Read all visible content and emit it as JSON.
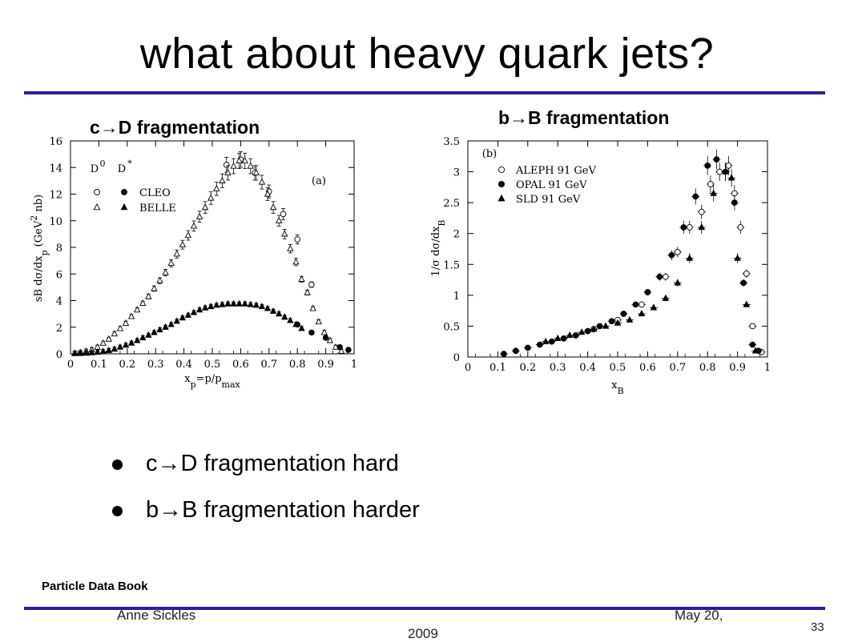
{
  "slide": {
    "title": "what about heavy quark jets?",
    "left_subtitle": "c→D fragmentation",
    "right_subtitle": "b→B fragmentation",
    "bullets": [
      "c→D fragmentation hard",
      "b→B fragmentation harder"
    ],
    "source": "Particle Data Book",
    "footer": {
      "author": "Anne Sickles",
      "date_line1": "May 20,",
      "date_line2": "2009",
      "page": "33"
    }
  },
  "chart_data": [
    {
      "type": "scatter",
      "panel_label": "(a)",
      "xlabel": "x_p=p/p_max",
      "ylabel": "sB dσ/dx_p (GeV^2 nb)",
      "xlim": [
        0,
        1
      ],
      "ylim": [
        0,
        16
      ],
      "xticks": [
        "0",
        "0.1",
        "0.2",
        "0.3",
        "0.4",
        "0.5",
        "0.6",
        "0.7",
        "0.8",
        "0.9",
        "1"
      ],
      "yticks": [
        "0",
        "2",
        "4",
        "6",
        "8",
        "10",
        "12",
        "14",
        "16"
      ],
      "legend_headers": [
        "D0",
        "D*"
      ],
      "legend_rows": [
        "CLEO",
        "BELLE"
      ],
      "series": [
        {
          "name": "D0 CLEO",
          "marker": "open-circle",
          "x": [
            0.55,
            0.6,
            0.65,
            0.7,
            0.75,
            0.8,
            0.85
          ],
          "y": [
            14.2,
            14.6,
            13.6,
            12.2,
            10.5,
            8.6,
            5.2
          ]
        },
        {
          "name": "D0 BELLE",
          "marker": "open-triangle",
          "x": [
            0.015,
            0.035,
            0.055,
            0.075,
            0.095,
            0.115,
            0.135,
            0.155,
            0.175,
            0.195,
            0.215,
            0.235,
            0.255,
            0.275,
            0.295,
            0.315,
            0.335,
            0.355,
            0.375,
            0.395,
            0.415,
            0.435,
            0.455,
            0.475,
            0.495,
            0.515,
            0.535,
            0.555,
            0.575,
            0.595,
            0.615,
            0.635,
            0.655,
            0.675,
            0.695,
            0.715,
            0.735,
            0.755,
            0.775,
            0.795,
            0.815,
            0.835,
            0.855,
            0.875,
            0.895,
            0.915,
            0.935,
            0.955
          ],
          "y": [
            0.05,
            0.1,
            0.2,
            0.3,
            0.5,
            0.8,
            1.1,
            1.5,
            1.9,
            2.3,
            2.8,
            3.3,
            3.8,
            4.3,
            4.9,
            5.5,
            6.1,
            6.8,
            7.5,
            8.2,
            8.9,
            9.6,
            10.3,
            11.0,
            11.7,
            12.4,
            13.0,
            13.6,
            14.1,
            14.5,
            14.5,
            14.1,
            13.6,
            12.9,
            12.0,
            11.0,
            10.0,
            9.0,
            7.9,
            6.9,
            5.6,
            4.6,
            3.4,
            2.4,
            1.6,
            1.0,
            0.5,
            0.2
          ]
        },
        {
          "name": "D* CLEO",
          "marker": "filled-circle",
          "x": [
            0.8,
            0.85,
            0.9,
            0.95,
            0.98
          ],
          "y": [
            2.2,
            1.6,
            1.2,
            0.5,
            0.3
          ]
        },
        {
          "name": "D* BELLE",
          "marker": "filled-triangle",
          "x": [
            0.015,
            0.035,
            0.055,
            0.075,
            0.095,
            0.115,
            0.135,
            0.155,
            0.175,
            0.195,
            0.215,
            0.235,
            0.255,
            0.275,
            0.295,
            0.315,
            0.335,
            0.355,
            0.375,
            0.395,
            0.415,
            0.435,
            0.455,
            0.475,
            0.495,
            0.515,
            0.535,
            0.555,
            0.575,
            0.595,
            0.615,
            0.635,
            0.655,
            0.675,
            0.695,
            0.715,
            0.735,
            0.755,
            0.775,
            0.795,
            0.815
          ],
          "y": [
            0.02,
            0.03,
            0.05,
            0.08,
            0.12,
            0.18,
            0.25,
            0.35,
            0.5,
            0.65,
            0.8,
            1.0,
            1.2,
            1.4,
            1.6,
            1.8,
            2.0,
            2.2,
            2.45,
            2.7,
            2.9,
            3.1,
            3.3,
            3.45,
            3.55,
            3.65,
            3.7,
            3.75,
            3.75,
            3.75,
            3.75,
            3.7,
            3.65,
            3.55,
            3.4,
            3.2,
            3.0,
            2.75,
            2.5,
            2.2,
            1.9
          ]
        }
      ]
    },
    {
      "type": "scatter",
      "panel_label": "(b)",
      "xlabel": "x_B",
      "ylabel": "1/σ dσ/dx_B",
      "xlim": [
        0,
        1
      ],
      "ylim": [
        0,
        3.5
      ],
      "xticks": [
        "0",
        "0.1",
        "0.2",
        "0.3",
        "0.4",
        "0.5",
        "0.6",
        "0.7",
        "0.8",
        "0.9",
        "1"
      ],
      "yticks": [
        "0",
        "0.5",
        "1",
        "1.5",
        "2",
        "2.5",
        "3",
        "3.5"
      ],
      "series": [
        {
          "name": "ALEPH 91 GeV",
          "marker": "open-circle",
          "x": [
            0.42,
            0.5,
            0.58,
            0.66,
            0.7,
            0.74,
            0.78,
            0.81,
            0.84,
            0.87,
            0.89,
            0.91,
            0.93,
            0.95,
            0.98
          ],
          "y": [
            0.45,
            0.6,
            0.85,
            1.3,
            1.7,
            2.1,
            2.35,
            2.8,
            3.0,
            3.1,
            2.65,
            2.1,
            1.35,
            0.5,
            0.08
          ]
        },
        {
          "name": "OPAL 91 GeV",
          "marker": "filled-circle",
          "x": [
            0.12,
            0.16,
            0.2,
            0.24,
            0.28,
            0.32,
            0.36,
            0.4,
            0.44,
            0.48,
            0.52,
            0.56,
            0.6,
            0.64,
            0.68,
            0.72,
            0.76,
            0.8,
            0.83,
            0.86,
            0.89,
            0.92,
            0.95,
            0.97
          ],
          "y": [
            0.05,
            0.1,
            0.15,
            0.2,
            0.25,
            0.3,
            0.35,
            0.42,
            0.5,
            0.58,
            0.7,
            0.85,
            1.05,
            1.3,
            1.65,
            2.1,
            2.6,
            3.1,
            3.2,
            3.0,
            2.5,
            1.2,
            0.2,
            0.1
          ]
        },
        {
          "name": "SLD 91 GeV",
          "marker": "filled-triangle",
          "x": [
            0.26,
            0.3,
            0.34,
            0.38,
            0.42,
            0.46,
            0.5,
            0.54,
            0.58,
            0.62,
            0.66,
            0.7,
            0.74,
            0.78,
            0.82,
            0.86,
            0.88,
            0.9,
            0.93,
            0.96
          ],
          "y": [
            0.25,
            0.3,
            0.35,
            0.4,
            0.45,
            0.5,
            0.55,
            0.6,
            0.7,
            0.8,
            0.95,
            1.2,
            1.6,
            2.1,
            2.65,
            3.0,
            2.9,
            1.6,
            0.85,
            0.1
          ]
        }
      ]
    }
  ]
}
